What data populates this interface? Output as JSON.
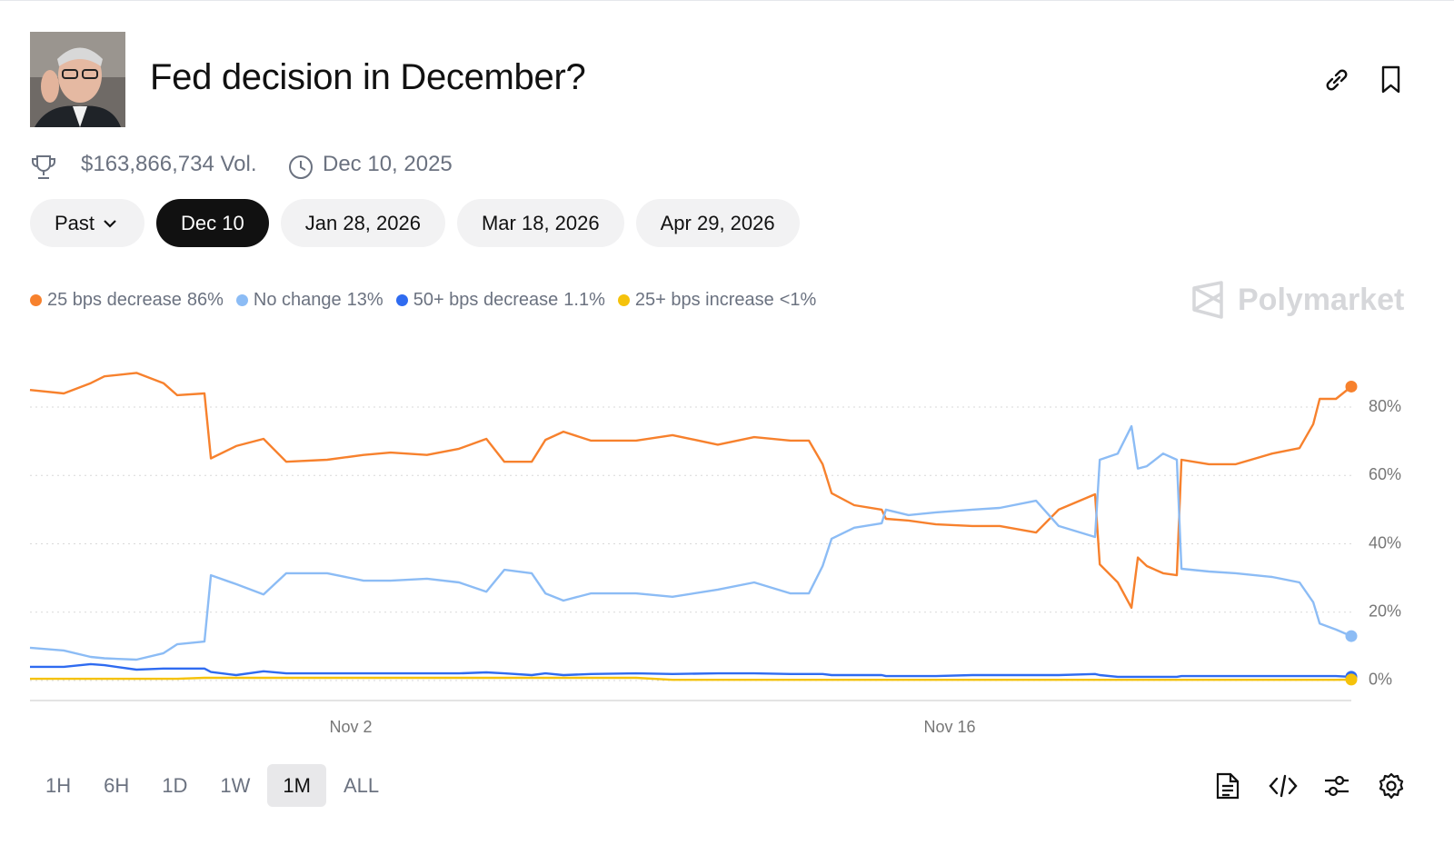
{
  "header": {
    "title": "Fed decision in December?",
    "volume": "$163,866,734 Vol.",
    "date": "Dec 10, 2025"
  },
  "tabs": [
    "Past",
    "Dec 10",
    "Jan 28, 2026",
    "Mar 18, 2026",
    "Apr 29, 2026"
  ],
  "brand": "Polymarket",
  "ranges": [
    "1H",
    "6H",
    "1D",
    "1W",
    "1M",
    "ALL"
  ],
  "chart_data": {
    "type": "line",
    "x": [
      298.5,
      299.29,
      299.92,
      300.24,
      300.99,
      301.62,
      301.94,
      302.58,
      302.73,
      303.32,
      303.96,
      304.49,
      305.45,
      306.3,
      306.93,
      307.78,
      308.53,
      309.17,
      309.59,
      310.23,
      310.55,
      310.97,
      311.61,
      312.67,
      313.52,
      314.58,
      315.43,
      316.28,
      316.71,
      317.03,
      317.24,
      317.77,
      318.41,
      318.51,
      319.04,
      319.68,
      320.53,
      321.17,
      322.02,
      322.55,
      323.4,
      323.51,
      323.93,
      324.25,
      324.4,
      324.61,
      324.99,
      325.31,
      325.42,
      326.06,
      326.69,
      327.54,
      328.18,
      328.5,
      328.65,
      329.03,
      329.39
    ],
    "xlim": [
      298.5,
      329.39
    ],
    "xticks": [
      {
        "value": 306,
        "label": "Nov 2"
      },
      {
        "value": 320,
        "label": "Nov 16"
      }
    ],
    "ylim": [
      -5.85,
      92.5
    ],
    "yticks": [
      {
        "value": 0,
        "label": "0%"
      },
      {
        "value": 20,
        "label": "20%"
      },
      {
        "value": 40,
        "label": "40%"
      },
      {
        "value": 60,
        "label": "60%"
      },
      {
        "value": 80,
        "label": "80%"
      }
    ],
    "grid": true,
    "series": [
      {
        "name": "25 bps decrease",
        "current": "86%",
        "color": "#f7812d",
        "values": [
          85,
          84,
          87,
          89,
          90,
          87,
          83.5,
          84,
          65,
          68.6,
          70.7,
          64,
          64.6,
          66,
          66.7,
          66,
          67.8,
          70.7,
          64,
          64,
          70.4,
          72.8,
          70.2,
          70.2,
          71.8,
          69,
          71.2,
          70.2,
          70.2,
          63.3,
          54.8,
          51.3,
          50,
          47.3,
          46.8,
          45.7,
          45.2,
          45.2,
          43.3,
          50,
          54.5,
          34,
          28.7,
          21.3,
          36,
          33.5,
          31.4,
          30.8,
          64.6,
          63.3,
          63.3,
          66.4,
          68,
          75,
          82.4,
          82.4,
          86
        ]
      },
      {
        "name": "No change",
        "current": "13%",
        "color": "#8cbcf5",
        "values": [
          9.6,
          8.8,
          6.9,
          6.5,
          6.1,
          8,
          10.6,
          11.4,
          30.8,
          28.2,
          25.2,
          31.4,
          31.4,
          29.2,
          29.2,
          29.8,
          28.7,
          26,
          32.4,
          31.4,
          25.5,
          23.4,
          25.5,
          25.5,
          24.5,
          26.6,
          28.7,
          25.5,
          25.5,
          33.5,
          41.5,
          44.7,
          46,
          50,
          48.4,
          49.2,
          50,
          50.5,
          52.6,
          45.2,
          42,
          64.6,
          66.4,
          74.4,
          62,
          62.7,
          66.4,
          64.6,
          32.7,
          31.9,
          31.4,
          30.3,
          28.7,
          22.9,
          16.7,
          14.9,
          13
        ]
      },
      {
        "name": "50+ bps decrease",
        "current": "1.1%",
        "color": "#2f6bf0",
        "values": [
          4,
          4,
          4.8,
          4.5,
          3.2,
          3.5,
          3.5,
          3.5,
          2.5,
          1.6,
          2.7,
          2.1,
          2.1,
          2.1,
          2.1,
          2.1,
          2.1,
          2.4,
          2.1,
          1.6,
          2.1,
          1.6,
          1.9,
          2.1,
          1.9,
          2.1,
          2.1,
          1.9,
          1.9,
          1.9,
          1.6,
          1.6,
          1.6,
          1.3,
          1.3,
          1.3,
          1.6,
          1.6,
          1.6,
          1.6,
          1.9,
          1.6,
          1.1,
          1.1,
          1.1,
          1.1,
          1.1,
          1.1,
          1.3,
          1.3,
          1.3,
          1.3,
          1.3,
          1.3,
          1.3,
          1.3,
          1.1
        ]
      },
      {
        "name": "25+ bps increase",
        "current": "<1%",
        "color": "#f5c20b",
        "values": [
          0.5,
          0.5,
          0.5,
          0.5,
          0.5,
          0.5,
          0.5,
          0.8,
          0.8,
          0.8,
          0.8,
          0.8,
          0.8,
          0.8,
          0.8,
          0.8,
          0.8,
          0.8,
          0.8,
          0.8,
          0.8,
          0.8,
          0.8,
          0.8,
          0.2,
          0.2,
          0.2,
          0.2,
          0.2,
          0.2,
          0.2,
          0.2,
          0.2,
          0.2,
          0.2,
          0.2,
          0.2,
          0.2,
          0.2,
          0.2,
          0.2,
          0.2,
          0.2,
          0.2,
          0.2,
          0.2,
          0.2,
          0.2,
          0.2,
          0.2,
          0.2,
          0.2,
          0.2,
          0.2,
          0.2,
          0.2,
          0.3
        ]
      }
    ]
  }
}
